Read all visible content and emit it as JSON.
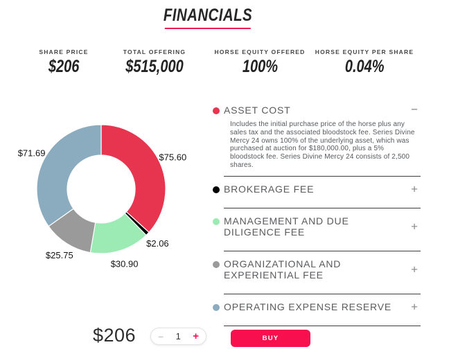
{
  "page": {
    "title": "FINANCIALS"
  },
  "colors": {
    "accent": "#f8104e",
    "title_underline": "#ee1a52"
  },
  "stats": [
    {
      "label": "SHARE PRICE",
      "value": "$206"
    },
    {
      "label": "TOTAL OFFERING",
      "value": "$515,000"
    },
    {
      "label": "HORSE EQUITY OFFERED",
      "value": "100%"
    },
    {
      "label": "HORSE EQUITY PER SHARE",
      "value": "0.04%"
    }
  ],
  "chart_data": {
    "type": "pie",
    "donut": true,
    "categories": [
      "Asset Cost",
      "Brokerage Fee",
      "Management and Due Diligence Fee",
      "Organizational and Experiential Fee",
      "Operating Expense Reserve"
    ],
    "values": [
      75.6,
      2.06,
      30.9,
      25.75,
      71.69
    ],
    "display_values": [
      "$75.60",
      "$2.06",
      "$30.90",
      "$25.75",
      "$71.69"
    ],
    "colors": [
      "#e8354f",
      "#000000",
      "#9cebb5",
      "#9a9a9a",
      "#8bacbe"
    ],
    "total": 206.0,
    "title": "",
    "legend_position": "right-accordion",
    "start_angle_deg": 0,
    "direction": "clockwise"
  },
  "accordion": [
    {
      "label": "ASSET COST",
      "color": "#e8354f",
      "expanded": true,
      "toggle": "−",
      "body": "Includes the initial purchase price of the horse plus any sales tax and the associated bloodstock fee. Series Divine Mercy 24 owns 100% of the underlying asset, which was purchased at auction for $180,000.00, plus a 5% bloodstock fee. Series Divine Mercy 24 consists of 2,500 shares."
    },
    {
      "label": "BROKERAGE FEE",
      "color": "#000000",
      "expanded": false,
      "toggle": "+"
    },
    {
      "label": "MANAGEMENT AND DUE DILIGENCE FEE",
      "color": "#9cebb5",
      "expanded": false,
      "toggle": "+"
    },
    {
      "label": "ORGANIZATIONAL AND EXPERIENTIAL FEE",
      "color": "#9a9a9a",
      "expanded": false,
      "toggle": "+"
    },
    {
      "label": "OPERATING EXPENSE RESERVE",
      "color": "#8bacbe",
      "expanded": false,
      "toggle": "+"
    }
  ],
  "purchase": {
    "price": "$206",
    "decrease_label": "−",
    "quantity": "1",
    "increase_label": "+",
    "buy_label": "BUY"
  }
}
